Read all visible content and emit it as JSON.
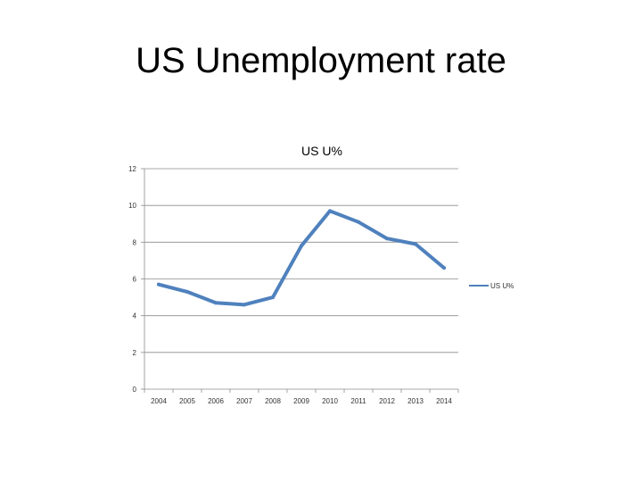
{
  "slide": {
    "title": "US Unemployment rate"
  },
  "chart_data": {
    "type": "line",
    "title": "US U%",
    "xlabel": "",
    "ylabel": "",
    "categories": [
      "2004",
      "2005",
      "2006",
      "2007",
      "2008",
      "2009",
      "2010",
      "2011",
      "2012",
      "2013",
      "2014"
    ],
    "series": [
      {
        "name": "US U%",
        "values": [
          5.7,
          5.3,
          4.7,
          4.6,
          5.0,
          7.8,
          9.7,
          9.1,
          8.2,
          7.9,
          6.6
        ],
        "color": "#4f81bd"
      }
    ],
    "ylim": [
      0,
      12
    ],
    "yticks": [
      0,
      2,
      4,
      6,
      8,
      10,
      12
    ],
    "grid": true,
    "legend": "right"
  }
}
